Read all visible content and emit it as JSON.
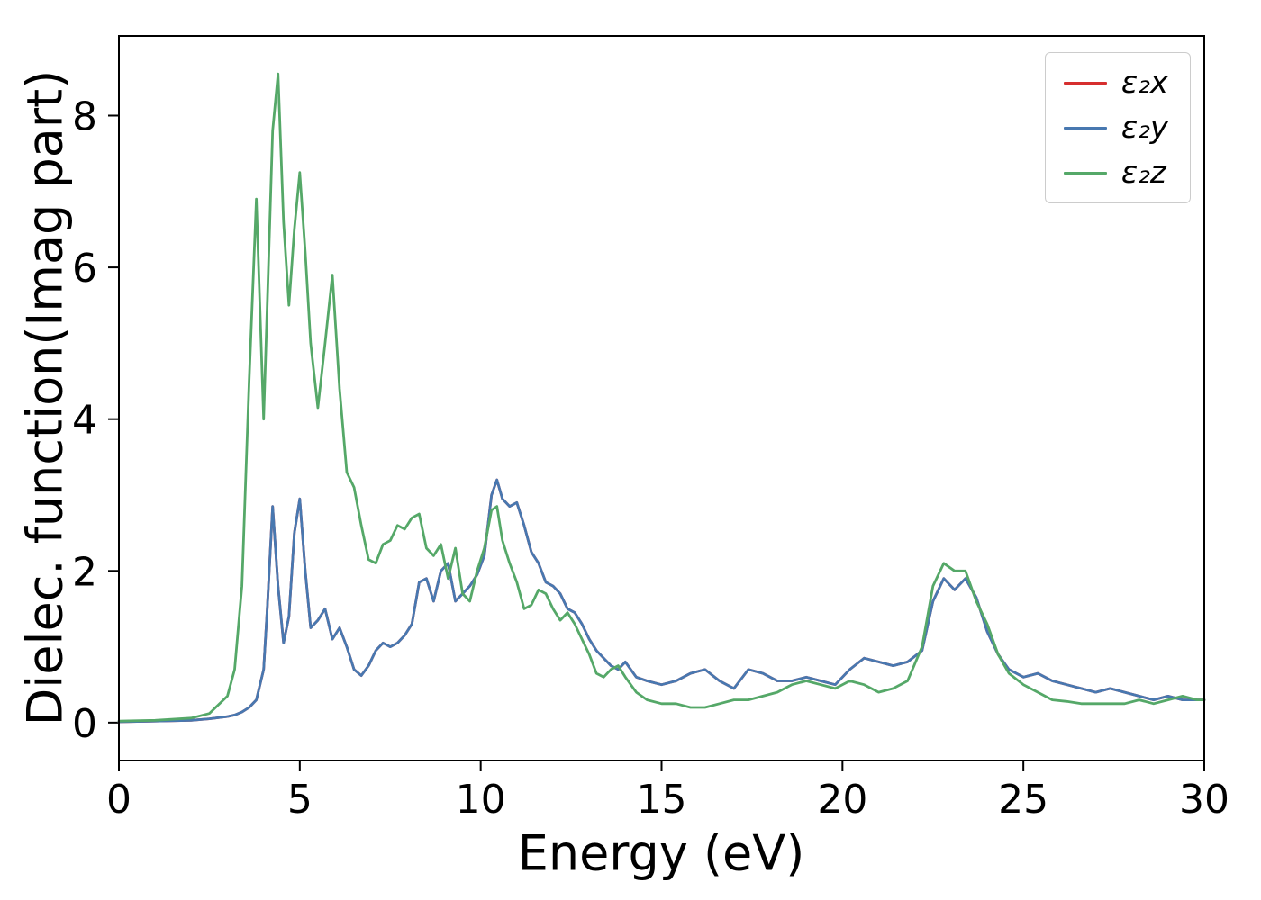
{
  "chart_data": {
    "type": "line",
    "title": "",
    "xlabel": "Energy (eV)",
    "ylabel": "Dielec. function(Imag part)",
    "xlim": [
      0,
      30
    ],
    "ylim": [
      -0.5,
      9.05
    ],
    "xticks": [
      0,
      5,
      10,
      15,
      20,
      25,
      30
    ],
    "yticks": [
      0,
      2,
      4,
      6,
      8
    ],
    "grid": false,
    "legend_position": "upper right",
    "axis_color": "#000000",
    "x": [
      0,
      1,
      2,
      2.5,
      3.0,
      3.2,
      3.4,
      3.6,
      3.8,
      4.0,
      4.1,
      4.25,
      4.4,
      4.55,
      4.7,
      4.85,
      5.0,
      5.15,
      5.3,
      5.5,
      5.7,
      5.9,
      6.1,
      6.3,
      6.5,
      6.7,
      6.9,
      7.1,
      7.3,
      7.5,
      7.7,
      7.9,
      8.1,
      8.3,
      8.5,
      8.7,
      8.9,
      9.1,
      9.3,
      9.5,
      9.7,
      9.9,
      10.1,
      10.3,
      10.45,
      10.6,
      10.8,
      11.0,
      11.2,
      11.4,
      11.6,
      11.8,
      12.0,
      12.2,
      12.4,
      12.6,
      12.8,
      13.0,
      13.2,
      13.4,
      13.6,
      13.8,
      14.0,
      14.3,
      14.6,
      15.0,
      15.4,
      15.8,
      16.2,
      16.6,
      17.0,
      17.4,
      17.8,
      18.2,
      18.6,
      19.0,
      19.4,
      19.8,
      20.2,
      20.6,
      21.0,
      21.4,
      21.8,
      22.2,
      22.5,
      22.8,
      23.1,
      23.4,
      23.7,
      24.0,
      24.3,
      24.6,
      25.0,
      25.4,
      25.8,
      26.2,
      26.6,
      27.0,
      27.4,
      27.8,
      28.2,
      28.6,
      29.0,
      29.4,
      29.8,
      30.0
    ],
    "series": [
      {
        "id": "e2x",
        "name": "ε₂x",
        "color": "#d62f2f",
        "note": "hidden exactly beneath ε₂y",
        "values": [
          0.01,
          0.02,
          0.03,
          0.05,
          0.08,
          0.1,
          0.14,
          0.2,
          0.3,
          0.7,
          1.5,
          2.85,
          1.8,
          1.05,
          1.4,
          2.5,
          2.95,
          2.0,
          1.25,
          1.35,
          1.5,
          1.1,
          1.25,
          1.0,
          0.7,
          0.62,
          0.75,
          0.95,
          1.05,
          1.0,
          1.05,
          1.15,
          1.3,
          1.85,
          1.9,
          1.6,
          2.0,
          2.1,
          1.6,
          1.7,
          1.8,
          1.95,
          2.2,
          3.0,
          3.2,
          2.95,
          2.85,
          2.9,
          2.6,
          2.25,
          2.1,
          1.85,
          1.8,
          1.7,
          1.5,
          1.45,
          1.3,
          1.1,
          0.95,
          0.85,
          0.75,
          0.7,
          0.8,
          0.6,
          0.55,
          0.5,
          0.55,
          0.65,
          0.7,
          0.55,
          0.45,
          0.7,
          0.65,
          0.55,
          0.55,
          0.6,
          0.55,
          0.5,
          0.7,
          0.85,
          0.8,
          0.75,
          0.8,
          0.95,
          1.6,
          1.9,
          1.75,
          1.9,
          1.65,
          1.2,
          0.9,
          0.7,
          0.6,
          0.65,
          0.55,
          0.5,
          0.45,
          0.4,
          0.45,
          0.4,
          0.35,
          0.3,
          0.35,
          0.3,
          0.3,
          0.3
        ]
      },
      {
        "id": "e2y",
        "name": "ε₂y",
        "color": "#4878b0",
        "values": [
          0.01,
          0.02,
          0.03,
          0.05,
          0.08,
          0.1,
          0.14,
          0.2,
          0.3,
          0.7,
          1.5,
          2.85,
          1.8,
          1.05,
          1.4,
          2.5,
          2.95,
          2.0,
          1.25,
          1.35,
          1.5,
          1.1,
          1.25,
          1.0,
          0.7,
          0.62,
          0.75,
          0.95,
          1.05,
          1.0,
          1.05,
          1.15,
          1.3,
          1.85,
          1.9,
          1.6,
          2.0,
          2.1,
          1.6,
          1.7,
          1.8,
          1.95,
          2.2,
          3.0,
          3.2,
          2.95,
          2.85,
          2.9,
          2.6,
          2.25,
          2.1,
          1.85,
          1.8,
          1.7,
          1.5,
          1.45,
          1.3,
          1.1,
          0.95,
          0.85,
          0.75,
          0.7,
          0.8,
          0.6,
          0.55,
          0.5,
          0.55,
          0.65,
          0.7,
          0.55,
          0.45,
          0.7,
          0.65,
          0.55,
          0.55,
          0.6,
          0.55,
          0.5,
          0.7,
          0.85,
          0.8,
          0.75,
          0.8,
          0.95,
          1.6,
          1.9,
          1.75,
          1.9,
          1.65,
          1.2,
          0.9,
          0.7,
          0.6,
          0.65,
          0.55,
          0.5,
          0.45,
          0.4,
          0.45,
          0.4,
          0.35,
          0.3,
          0.35,
          0.3,
          0.3,
          0.3
        ]
      },
      {
        "id": "e2z",
        "name": "ε₂z",
        "color": "#55a868",
        "values": [
          0.02,
          0.03,
          0.06,
          0.12,
          0.35,
          0.7,
          1.8,
          4.5,
          6.9,
          4.0,
          5.5,
          7.8,
          8.55,
          6.6,
          5.5,
          6.5,
          7.25,
          6.2,
          5.0,
          4.15,
          5.0,
          5.9,
          4.4,
          3.3,
          3.1,
          2.6,
          2.15,
          2.1,
          2.35,
          2.4,
          2.6,
          2.55,
          2.7,
          2.75,
          2.3,
          2.2,
          2.35,
          1.9,
          2.3,
          1.7,
          1.6,
          2.0,
          2.3,
          2.8,
          2.85,
          2.4,
          2.1,
          1.85,
          1.5,
          1.55,
          1.75,
          1.7,
          1.5,
          1.35,
          1.45,
          1.3,
          1.1,
          0.9,
          0.65,
          0.6,
          0.7,
          0.75,
          0.6,
          0.4,
          0.3,
          0.25,
          0.25,
          0.2,
          0.2,
          0.25,
          0.3,
          0.3,
          0.35,
          0.4,
          0.5,
          0.55,
          0.5,
          0.45,
          0.55,
          0.5,
          0.4,
          0.45,
          0.55,
          1.0,
          1.8,
          2.1,
          2.0,
          2.0,
          1.6,
          1.3,
          0.9,
          0.65,
          0.5,
          0.4,
          0.3,
          0.28,
          0.25,
          0.25,
          0.25,
          0.25,
          0.3,
          0.25,
          0.3,
          0.35,
          0.3,
          0.3
        ]
      }
    ]
  }
}
